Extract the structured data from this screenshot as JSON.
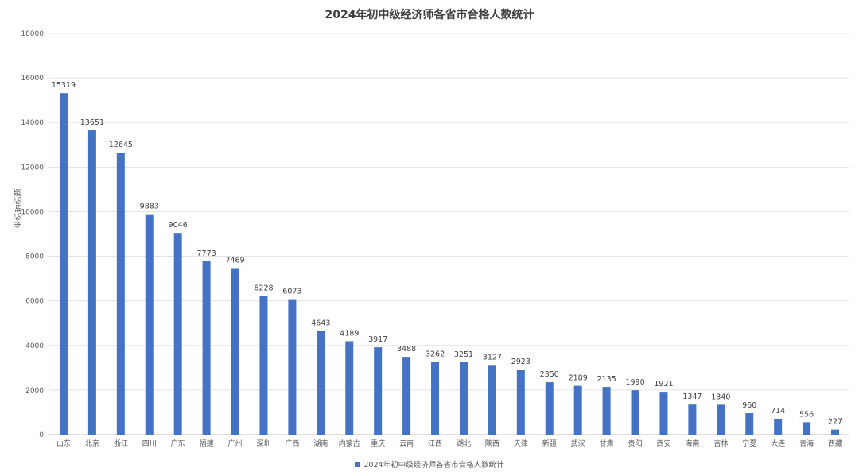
{
  "chart_data": {
    "type": "bar",
    "title": "2024年初中级经济师各省市合格人数统计",
    "ylabel": "坐标轴标题",
    "xlabel": "",
    "ylim": [
      0,
      18000
    ],
    "yticks": [
      0,
      2000,
      4000,
      6000,
      8000,
      10000,
      12000,
      14000,
      16000,
      18000
    ],
    "grid": true,
    "legend_position": "bottom",
    "categories": [
      "山东",
      "北京",
      "浙江",
      "四川",
      "广东",
      "福建",
      "广州",
      "深圳",
      "广西",
      "湖南",
      "内蒙古",
      "重庆",
      "云南",
      "江西",
      "湖北",
      "陕西",
      "天津",
      "新疆",
      "武汉",
      "甘肃",
      "贵阳",
      "西安",
      "海南",
      "吉林",
      "宁夏",
      "大连",
      "青海",
      "西藏"
    ],
    "series": [
      {
        "name": "2024年初中级经济师各省市合格人数统计",
        "color": "#4472c4",
        "values": [
          15319,
          13651,
          12645,
          9883,
          9046,
          7773,
          7469,
          6228,
          6073,
          4643,
          4189,
          3917,
          3488,
          3262,
          3251,
          3127,
          2923,
          2350,
          2189,
          2135,
          1990,
          1921,
          1347,
          1340,
          960,
          714,
          556,
          227
        ]
      }
    ]
  }
}
